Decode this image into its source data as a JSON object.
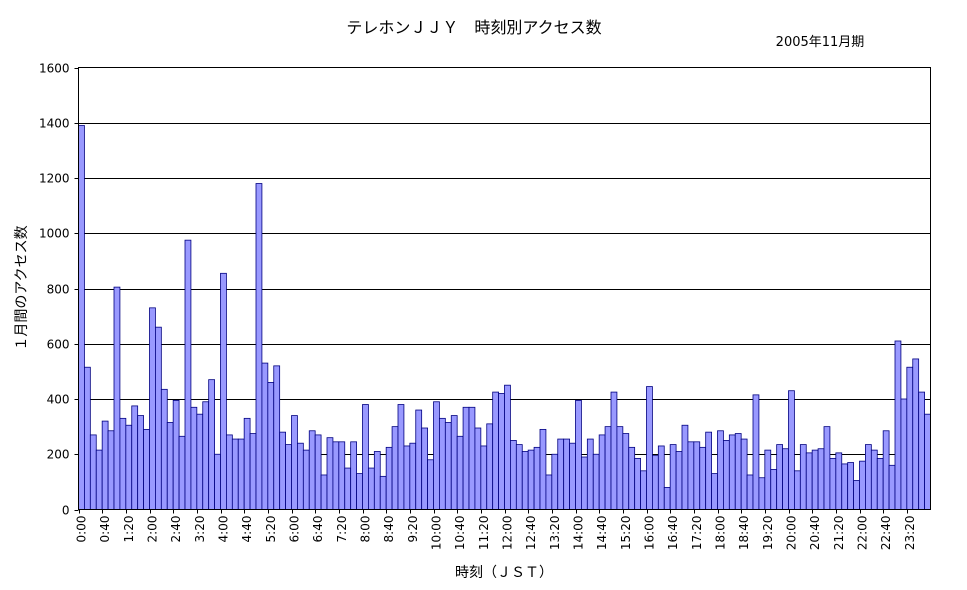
{
  "chart_data": {
    "type": "bar",
    "title": "テレホンＪＪＹ　時刻別アクセス数",
    "subtitle": "2005年11月期",
    "xlabel": "時刻（ＪＳＴ）",
    "ylabel": "１月間のアクセス数",
    "ylim": [
      0,
      1600
    ],
    "yticks": [
      0,
      200,
      400,
      600,
      800,
      1000,
      1200,
      1400,
      1600
    ],
    "grid": true,
    "legend": "none",
    "bar_color": "#9999FF",
    "bar_stroke": "#000080",
    "x_tick_labels": [
      "0:00",
      "0:40",
      "1:20",
      "2:00",
      "2:40",
      "3:20",
      "4:00",
      "4:40",
      "5:20",
      "6:00",
      "6:40",
      "7:20",
      "8:00",
      "8:40",
      "9:20",
      "10:00",
      "10:40",
      "11:20",
      "12:00",
      "12:40",
      "13:20",
      "14:00",
      "14:40",
      "15:20",
      "16:00",
      "16:40",
      "17:20",
      "18:00",
      "18:40",
      "19:20",
      "20:00",
      "20:40",
      "21:20",
      "22:00",
      "22:40",
      "23:20"
    ],
    "interval_minutes": 10,
    "values": [
      1390,
      515,
      270,
      215,
      320,
      285,
      805,
      330,
      305,
      375,
      340,
      290,
      730,
      660,
      435,
      315,
      395,
      265,
      975,
      370,
      345,
      390,
      470,
      200,
      855,
      270,
      255,
      255,
      330,
      275,
      1180,
      530,
      460,
      520,
      280,
      235,
      340,
      240,
      215,
      285,
      270,
      125,
      260,
      245,
      245,
      150,
      245,
      130,
      380,
      150,
      210,
      120,
      225,
      300,
      380,
      230,
      240,
      360,
      295,
      180,
      390,
      330,
      315,
      340,
      265,
      370,
      370,
      295,
      230,
      310,
      425,
      420,
      450,
      250,
      235,
      210,
      215,
      225,
      290,
      125,
      200,
      255,
      255,
      240,
      395,
      190,
      255,
      200,
      270,
      300,
      425,
      300,
      275,
      225,
      185,
      140,
      445,
      195,
      230,
      80,
      235,
      210,
      305,
      245,
      245,
      225,
      280,
      130,
      285,
      250,
      270,
      275,
      255,
      125,
      415,
      115,
      215,
      145,
      235,
      220,
      430,
      140,
      235,
      205,
      215,
      220,
      300,
      185,
      205,
      165,
      170,
      105,
      175,
      235,
      215,
      185,
      285,
      160,
      610,
      400,
      515,
      545,
      425,
      345
    ]
  }
}
